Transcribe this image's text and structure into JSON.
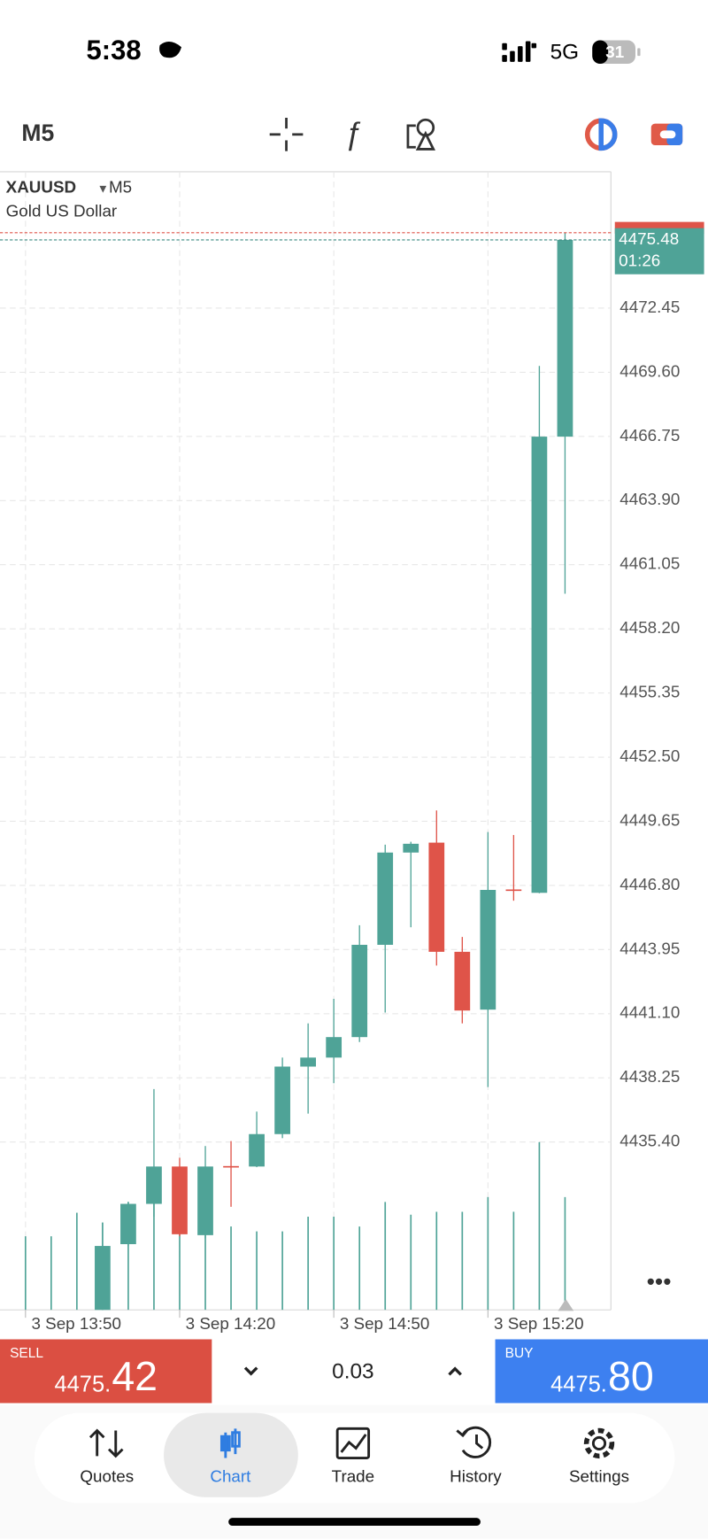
{
  "status_bar": {
    "time": "5:38",
    "network": "5G",
    "battery": "31"
  },
  "toolbar": {
    "timeframe": "M5"
  },
  "chart_data": {
    "type": "candlestick",
    "symbol": "XAUUSD",
    "timeframe": "M5",
    "description": "Gold US Dollar",
    "categories": [
      "3 Sep 13:50",
      null,
      null,
      null,
      null,
      null,
      "3 Sep 14:20",
      null,
      null,
      null,
      null,
      null,
      "3 Sep 14:50",
      null,
      null,
      null,
      null,
      null,
      "3 Sep 15:20",
      null,
      null,
      null
    ],
    "open": [
      null,
      null,
      null,
      4427.6,
      4430.86,
      4432.65,
      4434.31,
      4431.26,
      4434.33,
      4434.31,
      4435.75,
      4438.75,
      4439.15,
      4440.06,
      4444.16,
      4448.26,
      4448.7,
      4443.85,
      4441.28,
      4446.62,
      4446.47,
      4466.74
    ],
    "high": [
      null,
      null,
      null,
      4431.82,
      4432.74,
      4437.75,
      4434.7,
      4435.22,
      4435.44,
      4436.75,
      4439.15,
      4440.67,
      4441.76,
      4445.03,
      4448.61,
      4448.74,
      4450.13,
      4444.51,
      4449.17,
      4449.04,
      4469.88,
      4475.81
    ],
    "low": [
      null,
      null,
      null,
      4427.0,
      4430.78,
      4432.08,
      4431.21,
      4431.12,
      4432.52,
      4434.28,
      4435.57,
      4436.66,
      4438.01,
      4439.84,
      4441.15,
      4444.94,
      4443.24,
      4440.67,
      4437.84,
      4446.12,
      4446.45,
      4459.76
    ],
    "close": [
      null,
      null,
      null,
      4430.78,
      4432.65,
      4434.31,
      4431.3,
      4434.31,
      4434.28,
      4435.75,
      4438.75,
      4439.15,
      4440.06,
      4444.16,
      4448.26,
      4448.65,
      4443.85,
      4441.24,
      4446.6,
      4446.58,
      4466.74,
      4475.48
    ],
    "volume": [
      75,
      75,
      99,
      89,
      110,
      135,
      110,
      145,
      85,
      80,
      80,
      95,
      95,
      85,
      110,
      97,
      100,
      100,
      115,
      100,
      171,
      115
    ],
    "up_color": "#4fa397",
    "down_color": "#df5449",
    "ylim": [
      4427.94,
      4478.51
    ],
    "yticks": [
      4472.45,
      {
        "value": 4469.6,
        "label": "4469.60"
      },
      4466.75,
      {
        "value": 4463.9,
        "label": "4463.90"
      },
      4461.05,
      {
        "value": 4458.2,
        "label": "4458.20"
      },
      4455.35,
      {
        "value": 4452.5,
        "label": "4452.50"
      },
      4449.65,
      {
        "value": 4446.8,
        "label": "4446.80"
      },
      4443.95,
      {
        "value": 4441.1,
        "label": "4441.10"
      },
      4438.25,
      {
        "value": 4435.4,
        "label": "4435.40"
      }
    ],
    "grid": true,
    "last_price": 4475.48,
    "ask_price": 4475.8,
    "countdown": "01:26"
  },
  "trade_panel": {
    "sell": {
      "label": "SELL",
      "price_head": "4475.",
      "price_tail": "42"
    },
    "lot": "0.03",
    "buy": {
      "label": "BUY",
      "price_head": "4475.",
      "price_tail": "80"
    }
  },
  "nav": {
    "items": [
      "Quotes",
      "Chart",
      "Trade",
      "History",
      "Settings"
    ],
    "active": 1
  }
}
